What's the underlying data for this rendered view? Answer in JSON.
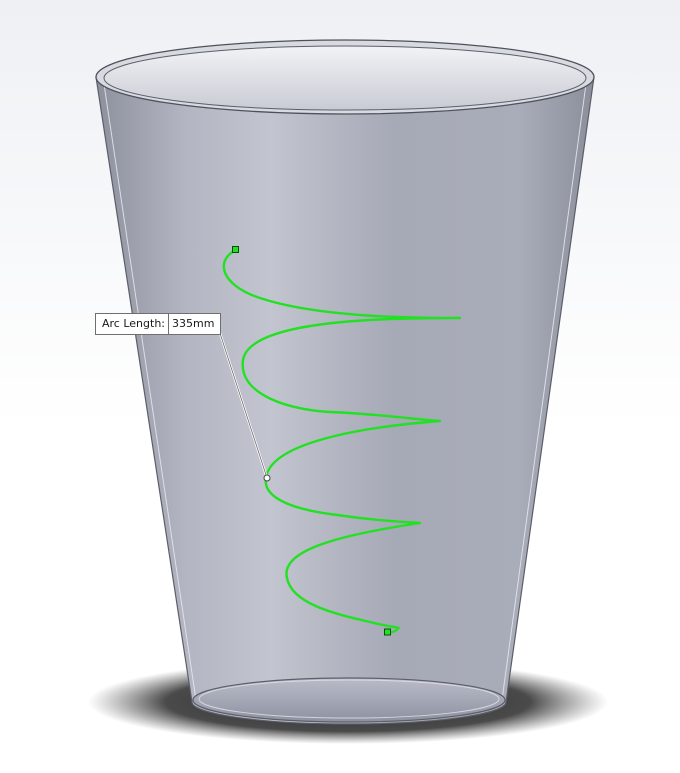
{
  "viewport": {
    "background_top": "#eef0f4",
    "background_bottom": "#ffffff"
  },
  "cup": {
    "body_color": "#a4a8b7",
    "edge_color": "#5c5e68",
    "shadow_color": "#333333"
  },
  "helix": {
    "color": "#22e022",
    "endpoint_color": "#22e022"
  },
  "arc_length": {
    "label": "Arc Length:",
    "value": "335mm"
  }
}
